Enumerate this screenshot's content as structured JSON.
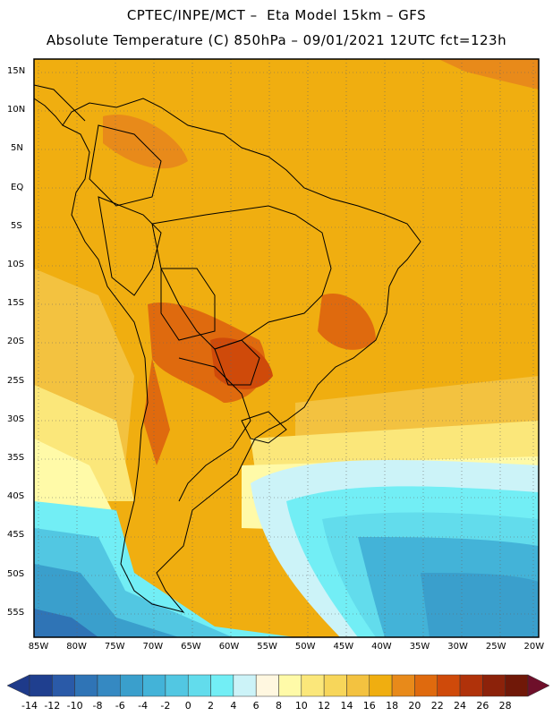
{
  "header": {
    "line1": "CPTEC/INPE/MCT –  Eta Model 15km – GFS",
    "line2": "Absolute Temperature (C) 850hPa – 09/01/2021 12UTC fct=123h"
  },
  "map": {
    "lat_labels": [
      "15N",
      "10N",
      "5N",
      "EQ",
      "5S",
      "10S",
      "15S",
      "20S",
      "25S",
      "30S",
      "35S",
      "40S",
      "45S",
      "50S",
      "55S"
    ],
    "lon_labels": [
      "85W",
      "80W",
      "75W",
      "70W",
      "65W",
      "60W",
      "55W",
      "50W",
      "45W",
      "40W",
      "35W",
      "30W",
      "25W",
      "20W"
    ]
  },
  "colorbar": {
    "labels": [
      "-14",
      "-12",
      "-10",
      "-8",
      "-6",
      "-4",
      "-2",
      "0",
      "2",
      "4",
      "6",
      "8",
      "10",
      "12",
      "14",
      "16",
      "18",
      "20",
      "22",
      "24",
      "26",
      "28"
    ],
    "colors": [
      "#1f3f8f",
      "#2a5aa8",
      "#2f74b6",
      "#3589c2",
      "#3a9fcc",
      "#43b3d8",
      "#52c7e2",
      "#62dcec",
      "#72eef5",
      "#ccf3f8",
      "#fff7e0",
      "#fffaa8",
      "#fbe77a",
      "#f7d65a",
      "#f3c240",
      "#f0ae10",
      "#e88a1a",
      "#df6a0e",
      "#cf4a0a",
      "#b0320a",
      "#8c220a",
      "#701808"
    ],
    "end_low": "#1e3a8a",
    "end_high": "#6e0f2a"
  }
}
